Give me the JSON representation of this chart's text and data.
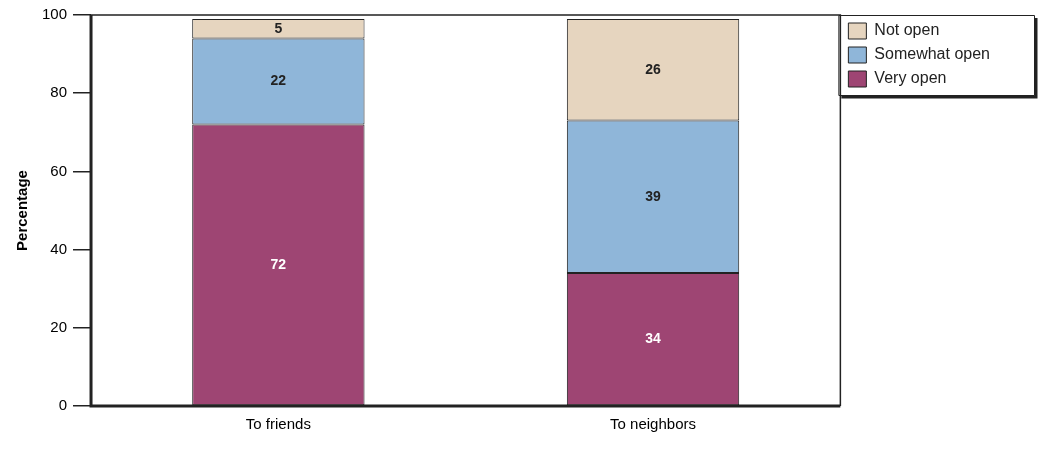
{
  "chart_data": {
    "type": "bar",
    "stacked": true,
    "ylabel": "Percentage",
    "categories": [
      "To friends",
      "To neighbors"
    ],
    "series": [
      {
        "name": "Very open",
        "color": "#9e4573",
        "values": [
          72,
          34
        ]
      },
      {
        "name": "Somewhat open",
        "color": "#8fb6d9",
        "values": [
          22,
          39
        ]
      },
      {
        "name": "Not open",
        "color": "#e6d5bf",
        "values": [
          5,
          26
        ]
      }
    ],
    "ylim": [
      0,
      100
    ],
    "yticks": [
      0,
      20,
      40,
      60,
      80,
      100
    ],
    "grid": false,
    "legend": "top right",
    "data_labels": true
  }
}
